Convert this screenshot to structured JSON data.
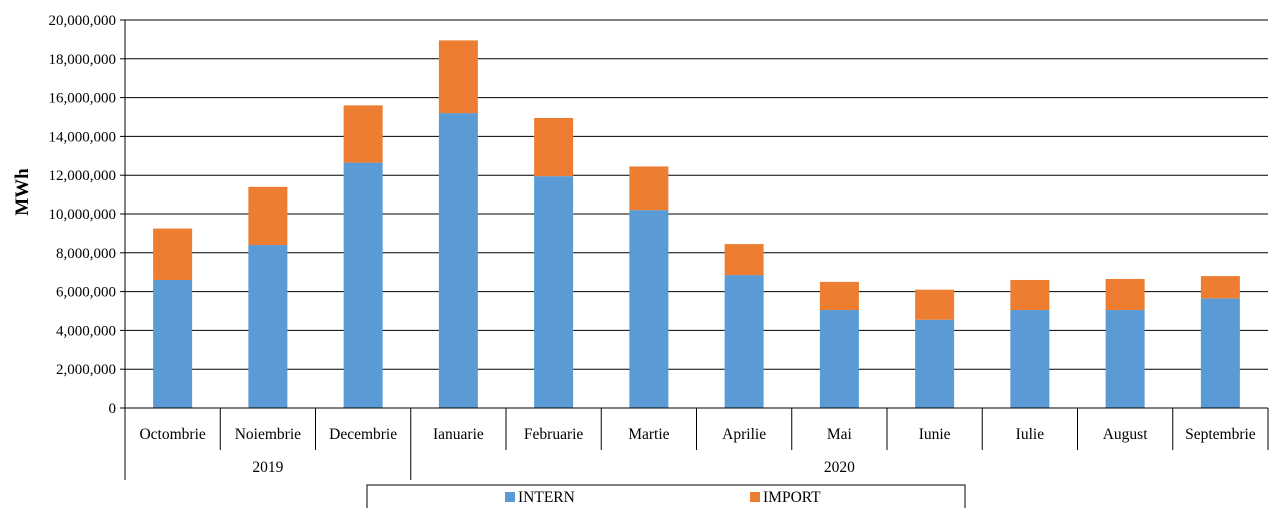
{
  "chart_data": {
    "type": "bar",
    "stacked": true,
    "ylabel": "MWh",
    "ylim": [
      0,
      20000000
    ],
    "yticks": [
      0,
      2000000,
      4000000,
      6000000,
      8000000,
      10000000,
      12000000,
      14000000,
      16000000,
      18000000,
      20000000
    ],
    "ytick_labels": [
      "0",
      "2,000,000",
      "4,000,000",
      "6,000,000",
      "8,000,000",
      "10,000,000",
      "12,000,000",
      "14,000,000",
      "16,000,000",
      "18,000,000",
      "20,000,000"
    ],
    "grid": true,
    "legend_position": "bottom",
    "categories": [
      "Octombrie",
      "Noiembrie",
      "Decembrie",
      "Ianuarie",
      "Februarie",
      "Martie",
      "Aprilie",
      "Mai",
      "Iunie",
      "Iulie",
      "August",
      "Septembrie"
    ],
    "groups": [
      {
        "label": "2019",
        "count": 3
      },
      {
        "label": "2020",
        "count": 9
      }
    ],
    "series": [
      {
        "name": "INTERN",
        "color": "#5B9BD5",
        "values": [
          6600000,
          8400000,
          12650000,
          15200000,
          11950000,
          10200000,
          6850000,
          5050000,
          4550000,
          5050000,
          5050000,
          5650000
        ]
      },
      {
        "name": "IMPORT",
        "color": "#ED7D31",
        "values": [
          2650000,
          3000000,
          2950000,
          3750000,
          3000000,
          2250000,
          1600000,
          1450000,
          1550000,
          1550000,
          1600000,
          1150000
        ]
      }
    ]
  }
}
